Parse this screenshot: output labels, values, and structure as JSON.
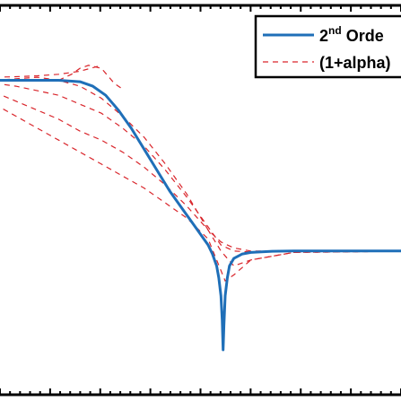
{
  "chart_data": {
    "type": "line",
    "title": "",
    "xlabel": "",
    "ylabel": "",
    "xlim": [
      0,
      1
    ],
    "ylim": [
      -1.05,
      0.25
    ],
    "grid": false,
    "legend_position": "top-right",
    "colors": {
      "solid": "#1f6fb8",
      "dashed": "#d9252b",
      "axes": "#000000"
    },
    "series": [
      {
        "name": "2nd Orde",
        "legend_sup": "nd",
        "legend_pre": "2",
        "legend_post": " Orde",
        "style": "solid",
        "x": [
          0.0,
          0.05,
          0.1,
          0.15,
          0.2,
          0.23,
          0.26,
          0.29,
          0.32,
          0.35,
          0.38,
          0.41,
          0.44,
          0.46,
          0.48,
          0.5,
          0.51,
          0.52,
          0.525,
          0.53,
          0.533,
          0.535,
          0.537,
          0.54,
          0.545,
          0.55,
          0.56,
          0.58,
          0.6,
          0.65,
          0.7,
          0.8,
          0.9,
          1.0
        ],
        "y": [
          0.0,
          0.0,
          0.0,
          0.0,
          -0.005,
          -0.02,
          -0.05,
          -0.1,
          -0.16,
          -0.23,
          -0.3,
          -0.37,
          -0.43,
          -0.47,
          -0.51,
          -0.55,
          -0.58,
          -0.62,
          -0.66,
          -0.72,
          -0.8,
          -0.9,
          -0.82,
          -0.72,
          -0.66,
          -0.62,
          -0.595,
          -0.58,
          -0.575,
          -0.571,
          -0.57,
          -0.57,
          -0.57,
          -0.57
        ]
      },
      {
        "name": "(1+alpha)",
        "style": "dashed",
        "curves": [
          {
            "x": [
              0.0,
              0.05,
              0.1,
              0.15,
              0.2,
              0.25,
              0.3,
              0.35,
              0.4,
              0.45,
              0.5,
              0.53,
              0.56,
              0.6,
              0.7,
              0.8,
              1.0
            ],
            "y": [
              0.0,
              0.005,
              0.01,
              0.0,
              -0.02,
              -0.06,
              -0.12,
              -0.19,
              -0.28,
              -0.38,
              -0.5,
              -0.54,
              -0.56,
              -0.57,
              -0.57,
              -0.57,
              -0.57
            ]
          },
          {
            "x": [
              0.0,
              0.05,
              0.1,
              0.15,
              0.2,
              0.25,
              0.3,
              0.35,
              0.4,
              0.45,
              0.5,
              0.53,
              0.56,
              0.6,
              0.7,
              1.0
            ],
            "y": [
              -0.01,
              -0.02,
              -0.035,
              -0.05,
              -0.08,
              -0.11,
              -0.16,
              -0.22,
              -0.3,
              -0.39,
              -0.49,
              -0.55,
              -0.57,
              -0.573,
              -0.571,
              -0.57
            ]
          },
          {
            "x": [
              0.0,
              0.05,
              0.1,
              0.15,
              0.2,
              0.25,
              0.3,
              0.35,
              0.4,
              0.45,
              0.5,
              0.53,
              0.56,
              0.6,
              0.7,
              1.0
            ],
            "y": [
              -0.04,
              -0.07,
              -0.1,
              -0.13,
              -0.17,
              -0.2,
              -0.24,
              -0.29,
              -0.35,
              -0.42,
              -0.5,
              -0.57,
              -0.62,
              -0.6,
              -0.575,
              -0.57
            ]
          },
          {
            "x": [
              0.0,
              0.05,
              0.1,
              0.15,
              0.2,
              0.25,
              0.3,
              0.35,
              0.4,
              0.45,
              0.5,
              0.52,
              0.54,
              0.56,
              0.6,
              0.7,
              1.0
            ],
            "y": [
              -0.08,
              -0.12,
              -0.16,
              -0.2,
              -0.24,
              -0.28,
              -0.32,
              -0.36,
              -0.41,
              -0.46,
              -0.53,
              -0.6,
              -0.67,
              -0.65,
              -0.6,
              -0.575,
              -0.57
            ]
          },
          {
            "x": [
              0.15,
              0.18,
              0.2,
              0.22,
              0.25,
              0.28,
              0.3
            ],
            "y": [
              0.0,
              0.02,
              0.04,
              0.05,
              0.04,
              -0.01,
              -0.03
            ]
          },
          {
            "x": [
              0.0,
              0.05,
              0.1,
              0.15,
              0.2,
              0.25
            ],
            "y": [
              0.01,
              0.012,
              0.015,
              0.02,
              0.03,
              0.05
            ]
          }
        ]
      }
    ]
  }
}
